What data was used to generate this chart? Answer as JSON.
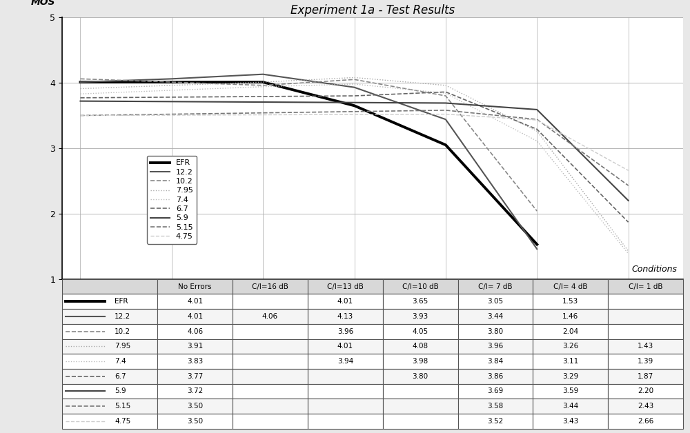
{
  "title": "Experiment 1a - Test Results",
  "ylabel": "MOS",
  "xlabel_conditions": "Conditions",
  "x_labels": [
    "No Errors",
    "C/I=16 dB",
    "C/I=13 dB",
    "C/I=10 dB",
    "C/I= 7 dB",
    "C/I= 4 dB",
    "C/I= 1 dB"
  ],
  "x_positions": [
    0,
    1,
    2,
    3,
    4,
    5,
    6
  ],
  "ylim": [
    1.0,
    5.0
  ],
  "yticks": [
    1.0,
    2.0,
    3.0,
    4.0,
    5.0
  ],
  "series": [
    {
      "name": "EFR",
      "color": "#000000",
      "linewidth": 2.8,
      "linestyle": "solid",
      "data": [
        [
          0,
          4.01
        ],
        [
          2,
          4.01
        ],
        [
          3,
          3.65
        ],
        [
          4,
          3.05
        ],
        [
          5,
          1.53
        ]
      ]
    },
    {
      "name": "12.2",
      "color": "#555555",
      "linewidth": 1.5,
      "linestyle": "solid",
      "data": [
        [
          0,
          4.01
        ],
        [
          1,
          4.06
        ],
        [
          2,
          4.13
        ],
        [
          3,
          3.93
        ],
        [
          4,
          3.44
        ],
        [
          5,
          1.46
        ]
      ]
    },
    {
      "name": "10.2",
      "color": "#888888",
      "linewidth": 1.2,
      "linestyle": "--",
      "dash_pattern": [
        6,
        3
      ],
      "data": [
        [
          0,
          4.06
        ],
        [
          2,
          3.96
        ],
        [
          3,
          4.05
        ],
        [
          4,
          3.8
        ],
        [
          5,
          2.04
        ]
      ]
    },
    {
      "name": "7.95",
      "color": "#aaaaaa",
      "linewidth": 1.0,
      "linestyle": "dotted",
      "dash_pattern": [
        1,
        2
      ],
      "data": [
        [
          0,
          3.91
        ],
        [
          2,
          4.01
        ],
        [
          3,
          4.08
        ],
        [
          4,
          3.96
        ],
        [
          5,
          3.26
        ],
        [
          6,
          1.43
        ]
      ]
    },
    {
      "name": "7.4",
      "color": "#bbbbbb",
      "linewidth": 1.0,
      "linestyle": "dotted",
      "dash_pattern": [
        1,
        2
      ],
      "data": [
        [
          0,
          3.83
        ],
        [
          2,
          3.94
        ],
        [
          3,
          3.98
        ],
        [
          4,
          3.84
        ],
        [
          5,
          3.11
        ],
        [
          6,
          1.39
        ]
      ]
    },
    {
      "name": "6.7",
      "color": "#666666",
      "linewidth": 1.2,
      "linestyle": "--",
      "dash_pattern": [
        8,
        3
      ],
      "data": [
        [
          0,
          3.77
        ],
        [
          3,
          3.8
        ],
        [
          4,
          3.86
        ],
        [
          5,
          3.29
        ],
        [
          6,
          1.87
        ]
      ]
    },
    {
      "name": "5.9",
      "color": "#444444",
      "linewidth": 1.5,
      "linestyle": "solid",
      "data": [
        [
          0,
          3.72
        ],
        [
          4,
          3.69
        ],
        [
          5,
          3.59
        ],
        [
          6,
          2.2
        ]
      ]
    },
    {
      "name": "5.15",
      "color": "#777777",
      "linewidth": 1.2,
      "linestyle": "--",
      "dash_pattern": [
        6,
        2
      ],
      "data": [
        [
          0,
          3.5
        ],
        [
          4,
          3.58
        ],
        [
          5,
          3.44
        ],
        [
          6,
          2.43
        ]
      ]
    },
    {
      "name": "4.75",
      "color": "#cccccc",
      "linewidth": 1.0,
      "linestyle": "--",
      "dash_pattern": [
        4,
        2
      ],
      "data": [
        [
          0,
          3.5
        ],
        [
          4,
          3.52
        ],
        [
          5,
          3.43
        ],
        [
          6,
          2.66
        ]
      ]
    }
  ],
  "table_rows": [
    "EFR",
    "12.2",
    "10.2",
    "7.95",
    "7.4",
    "6.7",
    "5.9",
    "5.15",
    "4.75"
  ],
  "table_cols": [
    "No Errors",
    "C/I=16 dB",
    "C/I=13 dB",
    "C/I=10 dB",
    "C/I= 7 dB",
    "C/I= 4 dB",
    "C/I= 1 dB"
  ],
  "table_values": [
    [
      "4.01",
      "",
      "4.01",
      "3.65",
      "3.05",
      "1.53",
      ""
    ],
    [
      "4.01",
      "4.06",
      "4.13",
      "3.93",
      "3.44",
      "1.46",
      ""
    ],
    [
      "4.06",
      "",
      "3.96",
      "4.05",
      "3.80",
      "2.04",
      ""
    ],
    [
      "3.91",
      "",
      "4.01",
      "4.08",
      "3.96",
      "3.26",
      "1.43"
    ],
    [
      "3.83",
      "",
      "3.94",
      "3.98",
      "3.84",
      "3.11",
      "1.39"
    ],
    [
      "3.77",
      "",
      "",
      "3.80",
      "3.86",
      "3.29",
      "1.87"
    ],
    [
      "3.72",
      "",
      "",
      "",
      "3.69",
      "3.59",
      "2.20"
    ],
    [
      "3.50",
      "",
      "",
      "",
      "3.58",
      "3.44",
      "2.43"
    ],
    [
      "3.50",
      "",
      "",
      "",
      "3.52",
      "3.43",
      "2.66"
    ]
  ],
  "fig_bg": "#e8e8e8",
  "plot_bg": "#ffffff"
}
